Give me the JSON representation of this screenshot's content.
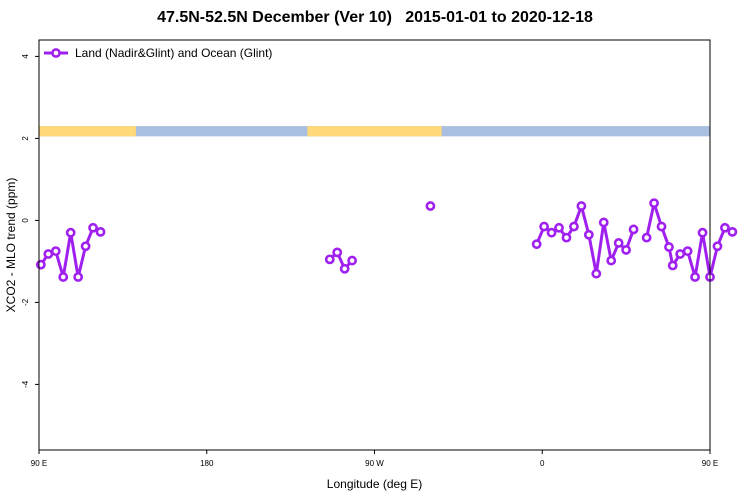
{
  "chart_data": {
    "type": "line",
    "title": "47.5N-52.5N December (Ver 10)   2015-01-01 to 2020-12-18",
    "xlabel": "Longitude (deg E)",
    "ylabel": "XCO2 - MLO trend (ppm)",
    "xlim": [
      90,
      450
    ],
    "ylim": [
      -5.6,
      4.4
    ],
    "x_ticks": [
      {
        "value": 90,
        "label": "90 E"
      },
      {
        "value": 180,
        "label": "180"
      },
      {
        "value": 270,
        "label": "90 W"
      },
      {
        "value": 360,
        "label": "0"
      },
      {
        "value": 450,
        "label": "90 E"
      },
      {
        "value": 540,
        "label": "180"
      }
    ],
    "y_ticks": [
      {
        "value": 4,
        "label": "4"
      },
      {
        "value": 2,
        "label": "2"
      },
      {
        "value": 0,
        "label": "0"
      },
      {
        "value": -2,
        "label": "-2"
      },
      {
        "value": -4,
        "label": "-4"
      }
    ],
    "legend": {
      "position": "top-left"
    },
    "colors": {
      "series": "#a020f0",
      "land": "#ffd97a",
      "ocean": "#a9bfe0"
    },
    "land_ocean_band": {
      "y_range": [
        2.05,
        2.3
      ],
      "land_segments": [
        [
          90,
          142
        ],
        [
          234,
          306
        ],
        [
          464,
          560
        ]
      ]
    },
    "series": [
      {
        "name": "Land (Nadir&Glint) and Ocean (Glint)",
        "segments": [
          [
            [
              91,
              -1.08
            ],
            [
              95,
              -0.82
            ],
            [
              99,
              -0.75
            ],
            [
              103,
              -1.38
            ],
            [
              107,
              -0.3
            ],
            [
              111,
              -1.38
            ],
            [
              115,
              -0.63
            ],
            [
              119,
              -0.18
            ],
            [
              123,
              -0.28
            ]
          ],
          [
            [
              246,
              -0.95
            ],
            [
              250,
              -0.78
            ],
            [
              254,
              -1.18
            ],
            [
              258,
              -0.98
            ]
          ],
          [
            [
              300,
              0.35
            ]
          ],
          [
            [
              357,
              -0.58
            ],
            [
              361,
              -0.15
            ],
            [
              365,
              -0.3
            ],
            [
              369,
              -0.18
            ],
            [
              373,
              -0.42
            ],
            [
              377,
              -0.15
            ],
            [
              381,
              0.35
            ],
            [
              385,
              -0.35
            ],
            [
              389,
              -1.3
            ],
            [
              393,
              -0.05
            ],
            [
              397,
              -0.98
            ],
            [
              401,
              -0.55
            ],
            [
              405,
              -0.72
            ],
            [
              409,
              -0.22
            ]
          ],
          [
            [
              416,
              -0.42
            ],
            [
              420,
              0.42
            ],
            [
              424,
              -0.15
            ],
            [
              428,
              -0.65
            ],
            [
              430,
              -1.1
            ],
            [
              434,
              -0.82
            ],
            [
              438,
              -0.75
            ],
            [
              442,
              -1.38
            ],
            [
              446,
              -0.3
            ],
            [
              450,
              -1.38
            ],
            [
              454,
              -0.63
            ],
            [
              458,
              -0.18
            ],
            [
              462,
              -0.28
            ]
          ]
        ]
      }
    ]
  }
}
